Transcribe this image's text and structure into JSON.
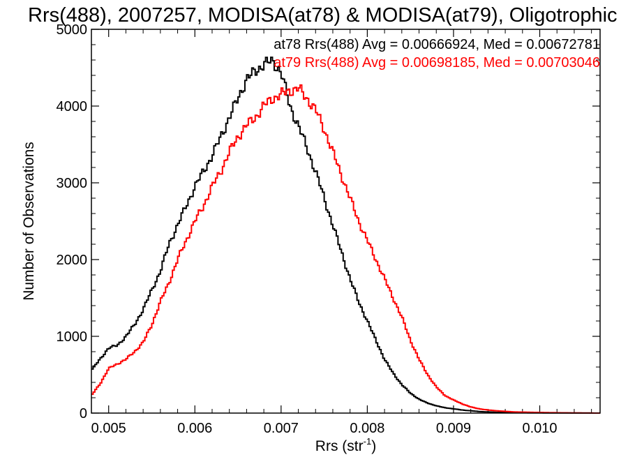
{
  "chart_data": {
    "type": "line",
    "title": "Rrs(488), 2007257, MODISA(at78) & MODISA(at79), Oligotrophic",
    "xlabel": "Rrs (str",
    "xlabel_sup": "-1",
    "xlabel_close": ")",
    "ylabel": "Number of Observations",
    "xlim": [
      0.0048,
      0.0107
    ],
    "ylim": [
      0,
      5000
    ],
    "x_ticks": [
      0.005,
      0.006,
      0.007,
      0.008,
      0.009,
      0.01
    ],
    "x_tick_labels": [
      "0.005",
      "0.006",
      "0.007",
      "0.008",
      "0.009",
      "0.010"
    ],
    "y_ticks": [
      0,
      1000,
      2000,
      3000,
      4000,
      5000
    ],
    "y_tick_labels": [
      "0",
      "1000",
      "2000",
      "3000",
      "4000",
      "5000"
    ],
    "legend_position": "top-right",
    "step": true,
    "series": [
      {
        "name": "at78 Rrs(488) Avg = 0.00666924, Med = 0.00672781",
        "color": "#000000",
        "x": [
          0.0048,
          0.0049,
          0.005,
          0.0051,
          0.0052,
          0.0053,
          0.0054,
          0.0055,
          0.0056,
          0.0057,
          0.0058,
          0.0059,
          0.006,
          0.0061,
          0.0062,
          0.0063,
          0.0064,
          0.0065,
          0.0066,
          0.0067,
          0.0068,
          0.0069,
          0.007,
          0.0071,
          0.0072,
          0.0073,
          0.0074,
          0.0075,
          0.0076,
          0.0077,
          0.0078,
          0.0079,
          0.008,
          0.0081,
          0.0082,
          0.0083,
          0.0084,
          0.0085,
          0.0086,
          0.0087,
          0.0088,
          0.0089,
          0.009,
          0.0091,
          0.0092,
          0.0093,
          0.0094,
          0.0095,
          0.0097,
          0.01,
          0.0103,
          0.0107
        ],
        "y": [
          560,
          700,
          850,
          880,
          1000,
          1150,
          1350,
          1600,
          1850,
          2200,
          2450,
          2700,
          2950,
          3150,
          3350,
          3600,
          3850,
          4100,
          4350,
          4450,
          4550,
          4580,
          4450,
          4000,
          3750,
          3450,
          3150,
          2800,
          2450,
          2100,
          1750,
          1450,
          1200,
          950,
          700,
          520,
          370,
          260,
          180,
          130,
          95,
          70,
          55,
          40,
          30,
          20,
          15,
          10,
          5,
          3,
          2,
          0
        ]
      },
      {
        "name": "at79 Rrs(488) Avg = 0.00698185, Med = 0.00703046",
        "color": "#ff0000",
        "x": [
          0.0048,
          0.0049,
          0.005,
          0.0051,
          0.0052,
          0.0053,
          0.0054,
          0.0055,
          0.0056,
          0.0057,
          0.0058,
          0.0059,
          0.006,
          0.0061,
          0.0062,
          0.0063,
          0.0064,
          0.0065,
          0.0066,
          0.0067,
          0.0068,
          0.0069,
          0.007,
          0.0071,
          0.0072,
          0.0073,
          0.0074,
          0.0075,
          0.0076,
          0.0077,
          0.0078,
          0.0079,
          0.008,
          0.0081,
          0.0082,
          0.0083,
          0.0084,
          0.0085,
          0.0086,
          0.0087,
          0.0088,
          0.0089,
          0.009,
          0.0091,
          0.0092,
          0.0093,
          0.0094,
          0.0095,
          0.0097,
          0.01,
          0.0103,
          0.0107
        ],
        "y": [
          230,
          380,
          580,
          640,
          700,
          800,
          920,
          1150,
          1450,
          1700,
          2000,
          2250,
          2500,
          2700,
          2950,
          3150,
          3400,
          3600,
          3750,
          3850,
          4000,
          4100,
          4150,
          4200,
          4230,
          4100,
          3950,
          3700,
          3400,
          3100,
          2800,
          2500,
          2250,
          2000,
          1750,
          1500,
          1250,
          950,
          700,
          500,
          340,
          230,
          170,
          120,
          80,
          55,
          40,
          30,
          15,
          8,
          3,
          0
        ]
      }
    ]
  }
}
